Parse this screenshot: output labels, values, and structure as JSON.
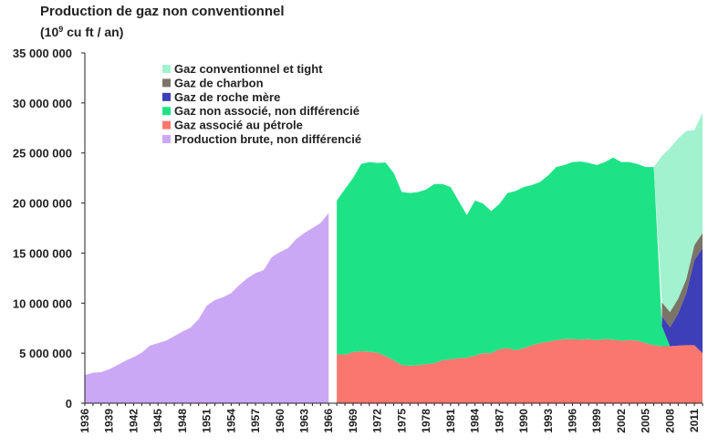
{
  "chart_data": {
    "type": "area",
    "title": "Production de gaz non conventionnel",
    "subtitle_prefix": "(10",
    "subtitle_exp": "9",
    "subtitle_suffix": " cu ft / an)",
    "ylim": [
      0,
      35000000
    ],
    "yticks": [
      0,
      5000000,
      10000000,
      15000000,
      20000000,
      25000000,
      30000000,
      35000000
    ],
    "ytick_labels": [
      "0",
      "5 000 000",
      "10 000 000",
      "15 000 000",
      "20 000 000",
      "25 000 000",
      "30 000 000",
      "35 000 000"
    ],
    "xlim": [
      1936,
      2012
    ],
    "xticks": [
      1936,
      1939,
      1942,
      1945,
      1948,
      1951,
      1954,
      1957,
      1960,
      1963,
      1966,
      1969,
      1972,
      1975,
      1978,
      1981,
      1984,
      1987,
      1990,
      1993,
      1996,
      1999,
      2002,
      2005,
      2008,
      2011
    ],
    "grid": false,
    "legend_position": "top-left",
    "stack_order": [
      "Gaz associé au pétrole",
      "Gaz non associé, non différencié",
      "Gaz de roche mère",
      "Gaz de charbon",
      "Gaz conventionnel et tight"
    ],
    "legend_order": [
      "Gaz conventionnel et tight",
      "Gaz de charbon",
      "Gaz de roche mère",
      "Gaz non associé, non différencié",
      "Gaz associé au pétrole",
      "Production brute, non différencié"
    ],
    "series": [
      {
        "name": "Production brute, non différencié",
        "color": "#cba8f5",
        "x": [
          1936,
          1937,
          1938,
          1939,
          1940,
          1941,
          1942,
          1943,
          1944,
          1945,
          1946,
          1947,
          1948,
          1949,
          1950,
          1951,
          1952,
          1953,
          1954,
          1955,
          1956,
          1957,
          1958,
          1959,
          1960,
          1961,
          1962,
          1963,
          1964,
          1965,
          1966
        ],
        "values": [
          2800000,
          3050000,
          3100000,
          3400000,
          3800000,
          4250000,
          4600000,
          5050000,
          5750000,
          6000000,
          6250000,
          6700000,
          7150000,
          7550000,
          8400000,
          9750000,
          10300000,
          10600000,
          11000000,
          11800000,
          12500000,
          13000000,
          13300000,
          14600000,
          15100000,
          15500000,
          16400000,
          17000000,
          17500000,
          18000000,
          19000000
        ]
      },
      {
        "name": "Gaz associé au pétrole",
        "color": "#f9776e",
        "x": [
          1967,
          1968,
          1969,
          1970,
          1971,
          1972,
          1973,
          1974,
          1975,
          1976,
          1977,
          1978,
          1979,
          1980,
          1981,
          1982,
          1983,
          1984,
          1985,
          1986,
          1987,
          1988,
          1989,
          1990,
          1991,
          1992,
          1993,
          1994,
          1995,
          1996,
          1997,
          1998,
          1999,
          2000,
          2001,
          2002,
          2003,
          2004,
          2005,
          2006,
          2007,
          2008,
          2009,
          2010,
          2011,
          2012
        ],
        "values": [
          4900000,
          4850000,
          5100000,
          5200000,
          5150000,
          5050000,
          4700000,
          4300000,
          3800000,
          3750000,
          3800000,
          3900000,
          4000000,
          4300000,
          4400000,
          4500000,
          4550000,
          4750000,
          5000000,
          5000000,
          5400000,
          5500000,
          5300000,
          5500000,
          5800000,
          6000000,
          6150000,
          6300000,
          6400000,
          6400000,
          6350000,
          6400000,
          6300000,
          6400000,
          6350000,
          6250000,
          6300000,
          6250000,
          6000000,
          5800000,
          5700000,
          5700000,
          5750000,
          5800000,
          5800000,
          5000000
        ]
      },
      {
        "name": "Gaz non associé, non différencié",
        "color": "#1ee386",
        "x": [
          1967,
          1968,
          1969,
          1970,
          1971,
          1972,
          1973,
          1974,
          1975,
          1976,
          1977,
          1978,
          1979,
          1980,
          1981,
          1982,
          1983,
          1984,
          1985,
          1986,
          1987,
          1988,
          1989,
          1990,
          1991,
          1992,
          1993,
          1994,
          1995,
          1996,
          1997,
          1998,
          1999,
          2000,
          2001,
          2002,
          2003,
          2004,
          2005,
          2006,
          2007,
          2008,
          2009,
          2010,
          2011,
          2012
        ],
        "values": [
          15350000,
          16550000,
          17400000,
          18700000,
          18950000,
          18950000,
          19350000,
          18700000,
          17300000,
          17250000,
          17300000,
          17450000,
          17900000,
          17600000,
          17200000,
          15700000,
          14250000,
          15500000,
          14950000,
          14200000,
          14500000,
          15500000,
          15900000,
          16100000,
          16000000,
          16100000,
          16600000,
          17300000,
          17400000,
          17700000,
          17800000,
          17600000,
          17500000,
          17700000,
          18200000,
          17850000,
          17800000,
          17650000,
          17600000,
          17800000,
          2000000,
          0,
          0,
          0,
          0,
          0
        ]
      },
      {
        "name": "Gaz de roche mère",
        "color": "#3d3fb8",
        "x": [
          2007,
          2008,
          2009,
          2010,
          2011,
          2012
        ],
        "values": [
          1000000,
          1900000,
          3200000,
          5200000,
          8500000,
          10500000
        ]
      },
      {
        "name": "Gaz de charbon",
        "color": "#7a7568",
        "x": [
          2007,
          2008,
          2009,
          2010,
          2011,
          2012
        ],
        "values": [
          1400000,
          1500000,
          1500000,
          1400000,
          1500000,
          1500000
        ]
      },
      {
        "name": "Gaz conventionnel et tight",
        "color": "#a3f2cf",
        "x": [
          2006,
          2007,
          2008,
          2009,
          2010,
          2011,
          2012
        ],
        "values": [
          0,
          14600000,
          16400000,
          16000000,
          14800000,
          11500000,
          12000000
        ]
      }
    ]
  }
}
